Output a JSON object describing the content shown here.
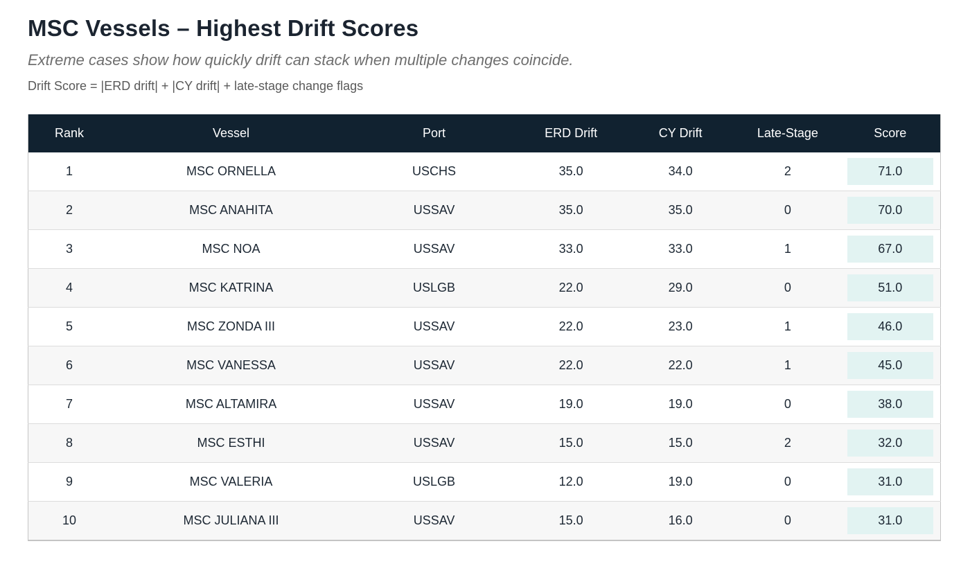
{
  "page": {
    "title": "MSC Vessels – Highest Drift Scores",
    "subtitle": "Extreme cases show how quickly drift can stack when multiple changes coincide.",
    "formula": "Drift Score = |ERD drift| + |CY drift| + late-stage change flags"
  },
  "colors": {
    "header_bg": "#112230",
    "header_text": "#ffffff",
    "row_bg": "#ffffff",
    "row_alt_bg": "#f7f7f7",
    "score_badge_bg": "#e2f3f2",
    "body_text": "#1c2733",
    "outer_border": "#c4c4c4",
    "row_divider": "#dcdcdc",
    "subtitle_text": "#6e6e6e",
    "formula_text": "#595959"
  },
  "table": {
    "columns": [
      "Rank",
      "Vessel",
      "Port",
      "ERD Drift",
      "CY Drift",
      "Late-Stage",
      "Score"
    ],
    "rows": [
      {
        "rank": "1",
        "vessel": "MSC ORNELLA",
        "port": "USCHS",
        "erd_drift": "35.0",
        "cy_drift": "34.0",
        "late_stage": "2",
        "score": "71.0"
      },
      {
        "rank": "2",
        "vessel": "MSC ANAHITA",
        "port": "USSAV",
        "erd_drift": "35.0",
        "cy_drift": "35.0",
        "late_stage": "0",
        "score": "70.0"
      },
      {
        "rank": "3",
        "vessel": "MSC NOA",
        "port": "USSAV",
        "erd_drift": "33.0",
        "cy_drift": "33.0",
        "late_stage": "1",
        "score": "67.0"
      },
      {
        "rank": "4",
        "vessel": "MSC KATRINA",
        "port": "USLGB",
        "erd_drift": "22.0",
        "cy_drift": "29.0",
        "late_stage": "0",
        "score": "51.0"
      },
      {
        "rank": "5",
        "vessel": "MSC ZONDA III",
        "port": "USSAV",
        "erd_drift": "22.0",
        "cy_drift": "23.0",
        "late_stage": "1",
        "score": "46.0"
      },
      {
        "rank": "6",
        "vessel": "MSC VANESSA",
        "port": "USSAV",
        "erd_drift": "22.0",
        "cy_drift": "22.0",
        "late_stage": "1",
        "score": "45.0"
      },
      {
        "rank": "7",
        "vessel": "MSC ALTAMIRA",
        "port": "USSAV",
        "erd_drift": "19.0",
        "cy_drift": "19.0",
        "late_stage": "0",
        "score": "38.0"
      },
      {
        "rank": "8",
        "vessel": "MSC ESTHI",
        "port": "USSAV",
        "erd_drift": "15.0",
        "cy_drift": "15.0",
        "late_stage": "2",
        "score": "32.0"
      },
      {
        "rank": "9",
        "vessel": "MSC VALERIA",
        "port": "USLGB",
        "erd_drift": "12.0",
        "cy_drift": "19.0",
        "late_stage": "0",
        "score": "31.0"
      },
      {
        "rank": "10",
        "vessel": "MSC JULIANA III",
        "port": "USSAV",
        "erd_drift": "15.0",
        "cy_drift": "16.0",
        "late_stage": "0",
        "score": "31.0"
      }
    ]
  },
  "chart_data": {
    "type": "table",
    "title": "MSC Vessels – Highest Drift Scores",
    "subtitle": "Extreme cases show how quickly drift can stack when multiple changes coincide.",
    "note": "Drift Score = |ERD drift| + |CY drift| + late-stage change flags",
    "columns": [
      "Rank",
      "Vessel",
      "Port",
      "ERD Drift",
      "CY Drift",
      "Late-Stage",
      "Score"
    ],
    "rows": [
      [
        1,
        "MSC ORNELLA",
        "USCHS",
        35.0,
        34.0,
        2,
        71.0
      ],
      [
        2,
        "MSC ANAHITA",
        "USSAV",
        35.0,
        35.0,
        0,
        70.0
      ],
      [
        3,
        "MSC NOA",
        "USSAV",
        33.0,
        33.0,
        1,
        67.0
      ],
      [
        4,
        "MSC KATRINA",
        "USLGB",
        22.0,
        29.0,
        0,
        51.0
      ],
      [
        5,
        "MSC ZONDA III",
        "USSAV",
        22.0,
        23.0,
        1,
        46.0
      ],
      [
        6,
        "MSC VANESSA",
        "USSAV",
        22.0,
        22.0,
        1,
        45.0
      ],
      [
        7,
        "MSC ALTAMIRA",
        "USSAV",
        19.0,
        19.0,
        0,
        38.0
      ],
      [
        8,
        "MSC ESTHI",
        "USSAV",
        15.0,
        15.0,
        2,
        32.0
      ],
      [
        9,
        "MSC VALERIA",
        "USLGB",
        12.0,
        19.0,
        0,
        31.0
      ],
      [
        10,
        "MSC JULIANA III",
        "USSAV",
        15.0,
        16.0,
        0,
        31.0
      ]
    ]
  }
}
